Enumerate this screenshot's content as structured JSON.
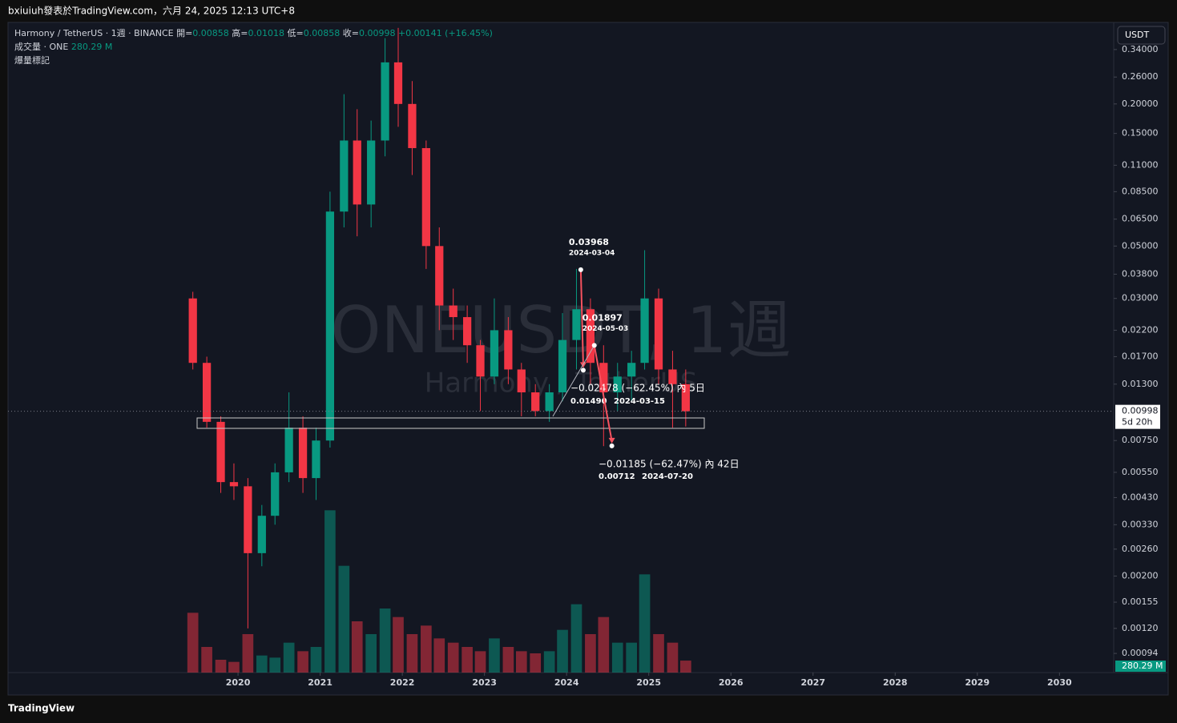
{
  "header": {
    "caption": "bxiuiuh發表於TradingView.com，六月 24, 2025 12:13 UTC+8"
  },
  "footer": {
    "brand": "TradingView"
  },
  "toolbar": {
    "currency": "USDT"
  },
  "legend": {
    "symbol": "Harmony / TetherUS · 1週 · BINANCE",
    "open_label": "開=",
    "open": 0.00858,
    "high_label": "高=",
    "high": 0.01018,
    "low_label": "低=",
    "low": 0.00858,
    "close_label": "收=",
    "close": 0.00998,
    "change": "+0.00141 (+16.45%)",
    "volume_name": "成交量 · ONE",
    "volume": "280.29 M",
    "indicator": "爆量標記",
    "countdown": "5d 20h"
  },
  "watermark": {
    "title": "ONEUSDT, 1週",
    "subtitle": "Harmony / TetherUS"
  },
  "annotations": {
    "points": [
      {
        "price": 0.03968,
        "date": "2024-03-04"
      },
      {
        "price": 0.01897,
        "date": "2024-05-03"
      }
    ],
    "measures": [
      {
        "text": "−0.02478 (−62.45%) 內 5日",
        "price": {
          "value": 0.0149,
          "label": "0.01490"
        },
        "date": "2024-03-15"
      },
      {
        "text": "−0.01185 (−62.47%) 內 42日",
        "price": {
          "value": 0.00712,
          "label": "0.00712"
        },
        "date": "2024-07-20"
      }
    ]
  },
  "chart_data": {
    "type": "candlestick",
    "yscale": "log",
    "up_color": "#089981",
    "down_color": "#f23645",
    "x": [
      2019.45,
      2019.62,
      2019.79,
      2019.95,
      2020.12,
      2020.29,
      2020.45,
      2020.62,
      2020.79,
      2020.95,
      2021.12,
      2021.29,
      2021.45,
      2021.62,
      2021.79,
      2021.95,
      2022.12,
      2022.29,
      2022.45,
      2022.62,
      2022.79,
      2022.95,
      2023.12,
      2023.29,
      2023.45,
      2023.62,
      2023.79,
      2023.95,
      2024.12,
      2024.29,
      2024.45,
      2024.62,
      2024.79,
      2024.95,
      2025.12,
      2025.29,
      2025.45
    ],
    "open": [
      0.03,
      0.016,
      0.009,
      0.005,
      0.0048,
      0.0025,
      0.0036,
      0.0055,
      0.0085,
      0.0052,
      0.0075,
      0.07,
      0.14,
      0.075,
      0.14,
      0.3,
      0.2,
      0.13,
      0.05,
      0.028,
      0.025,
      0.019,
      0.014,
      0.022,
      0.015,
      0.012,
      0.01,
      0.012,
      0.02,
      0.027,
      0.016,
      0.012,
      0.014,
      0.016,
      0.03,
      0.015,
      0.013
    ],
    "high": [
      0.032,
      0.017,
      0.0095,
      0.006,
      0.0052,
      0.004,
      0.006,
      0.012,
      0.0095,
      0.0085,
      0.085,
      0.22,
      0.19,
      0.17,
      0.38,
      0.42,
      0.25,
      0.14,
      0.06,
      0.033,
      0.028,
      0.02,
      0.03,
      0.025,
      0.016,
      0.013,
      0.013,
      0.026,
      0.04,
      0.03,
      0.019,
      0.016,
      0.018,
      0.048,
      0.033,
      0.018,
      0.015
    ],
    "low": [
      0.015,
      0.0085,
      0.0045,
      0.0042,
      0.0012,
      0.0022,
      0.0033,
      0.005,
      0.0045,
      0.0042,
      0.007,
      0.06,
      0.055,
      0.06,
      0.12,
      0.16,
      0.1,
      0.04,
      0.022,
      0.02,
      0.016,
      0.01,
      0.013,
      0.013,
      0.0095,
      0.0095,
      0.009,
      0.011,
      0.015,
      0.013,
      0.0071,
      0.01,
      0.011,
      0.015,
      0.013,
      0.0085,
      0.0086
    ],
    "close": [
      0.016,
      0.009,
      0.005,
      0.0048,
      0.0025,
      0.0036,
      0.0055,
      0.0085,
      0.0052,
      0.0075,
      0.07,
      0.14,
      0.075,
      0.14,
      0.3,
      0.2,
      0.13,
      0.05,
      0.028,
      0.025,
      0.019,
      0.014,
      0.022,
      0.015,
      0.012,
      0.01,
      0.012,
      0.02,
      0.027,
      0.016,
      0.012,
      0.014,
      0.016,
      0.03,
      0.015,
      0.013,
      0.00998
    ],
    "volume": [
      1400,
      600,
      300,
      250,
      900,
      400,
      350,
      700,
      500,
      600,
      3800,
      2500,
      1200,
      900,
      1500,
      1300,
      900,
      1100,
      800,
      700,
      600,
      500,
      800,
      600,
      500,
      450,
      500,
      1000,
      1600,
      900,
      1300,
      700,
      700,
      2300,
      900,
      700,
      280.29
    ],
    "vlim": [
      0,
      4500
    ],
    "last_price": 0.00998,
    "xlim": [
      2017.2,
      2030.66
    ],
    "xticks": [
      2020,
      2021,
      2022,
      2023,
      2024,
      2025,
      2026,
      2027,
      2028,
      2029,
      2030
    ],
    "ylim": [
      0.00078,
      0.443
    ],
    "yticks": [
      {
        "value": 0.34,
        "label": "0.34000"
      },
      {
        "value": 0.26,
        "label": "0.26000"
      },
      {
        "value": 0.2,
        "label": "0.20000"
      },
      {
        "value": 0.15,
        "label": "0.15000"
      },
      {
        "value": 0.11,
        "label": "0.11000"
      },
      {
        "value": 0.085,
        "label": "0.08500"
      },
      {
        "value": 0.065,
        "label": "0.06500"
      },
      {
        "value": 0.05,
        "label": "0.05000"
      },
      {
        "value": 0.038,
        "label": "0.03800"
      },
      {
        "value": 0.03,
        "label": "0.03000"
      },
      {
        "value": 0.022,
        "label": "0.02200"
      },
      {
        "value": 0.017,
        "label": "0.01700"
      },
      {
        "value": 0.013,
        "label": "0.01300"
      },
      {
        "value": 0.0075,
        "label": "0.00750"
      },
      {
        "value": 0.0055,
        "label": "0.00550"
      },
      {
        "value": 0.0043,
        "label": "0.00430"
      },
      {
        "value": 0.0033,
        "label": "0.00330"
      },
      {
        "value": 0.0026,
        "label": "0.00260"
      },
      {
        "value": 0.002,
        "label": "0.00200"
      },
      {
        "value": 0.00155,
        "label": "0.00155"
      },
      {
        "value": 0.0012,
        "label": "0.00120"
      },
      {
        "value": 0.00094,
        "label": "0.00094"
      }
    ]
  }
}
